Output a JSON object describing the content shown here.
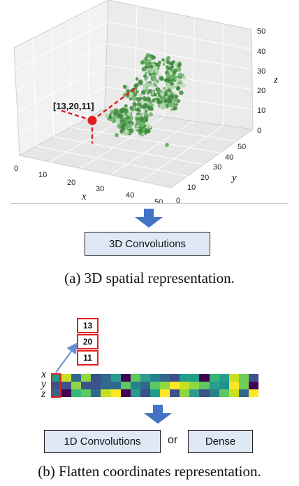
{
  "panel_a": {
    "point_label": "[13,20,11]",
    "axis_x_label": "x",
    "axis_y_label": "y",
    "axis_z_label": "z",
    "x_ticks": [
      "0",
      "10",
      "20",
      "30",
      "40",
      "50"
    ],
    "y_ticks": [
      "0",
      "10",
      "20",
      "30",
      "40",
      "50"
    ],
    "z_ticks": [
      "0",
      "10",
      "20",
      "30",
      "40",
      "50"
    ],
    "box_label": "3D Convolutions",
    "caption": "(a) 3D spatial representation."
  },
  "panel_b": {
    "coordinates": [
      "13",
      "20",
      "11"
    ],
    "row_labels": [
      "x",
      "y",
      "z"
    ],
    "box_1d_label": "1D Convolutions",
    "or_label": "or",
    "box_dense_label": "Dense",
    "caption": "(b) Flatten coordinates representation."
  },
  "colors": {
    "accent_arrow": "#4472c4",
    "highlight": "#e02020",
    "point_cloud": "#4a9a4a",
    "box_fill": "#dfe9f6"
  }
}
